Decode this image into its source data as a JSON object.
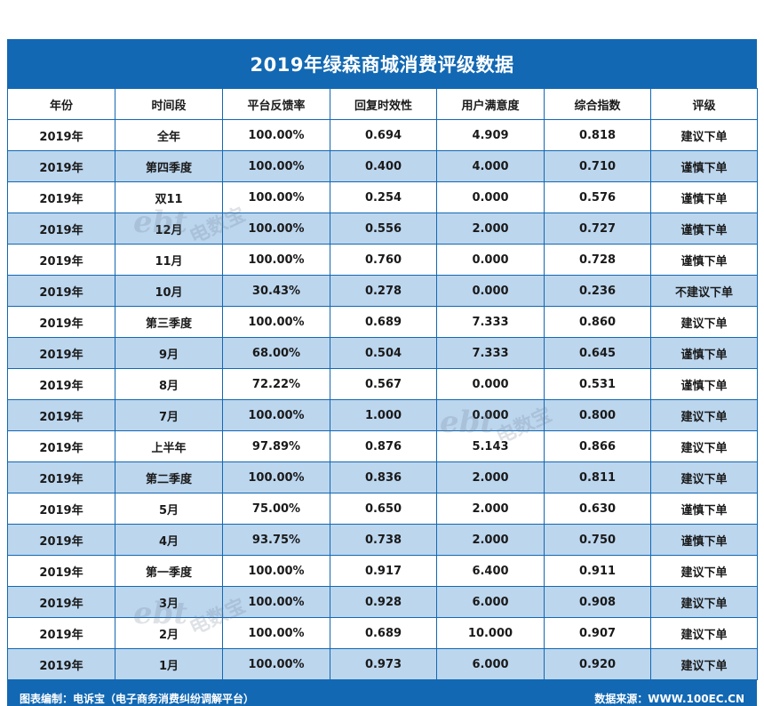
{
  "title": "2019年绿森商城消费评级数据",
  "columns": [
    "年份",
    "时间段",
    "平台反馈率",
    "回复时效性",
    "用户满意度",
    "综合指数",
    "评级"
  ],
  "rows": [
    [
      "2019年",
      "全年",
      "100.00%",
      "0.694",
      "4.909",
      "0.818",
      "建议下单"
    ],
    [
      "2019年",
      "第四季度",
      "100.00%",
      "0.400",
      "4.000",
      "0.710",
      "谨慎下单"
    ],
    [
      "2019年",
      "双11",
      "100.00%",
      "0.254",
      "0.000",
      "0.576",
      "谨慎下单"
    ],
    [
      "2019年",
      "12月",
      "100.00%",
      "0.556",
      "2.000",
      "0.727",
      "谨慎下单"
    ],
    [
      "2019年",
      "11月",
      "100.00%",
      "0.760",
      "0.000",
      "0.728",
      "谨慎下单"
    ],
    [
      "2019年",
      "10月",
      "30.43%",
      "0.278",
      "0.000",
      "0.236",
      "不建议下单"
    ],
    [
      "2019年",
      "第三季度",
      "100.00%",
      "0.689",
      "7.333",
      "0.860",
      "建议下单"
    ],
    [
      "2019年",
      "9月",
      "68.00%",
      "0.504",
      "7.333",
      "0.645",
      "谨慎下单"
    ],
    [
      "2019年",
      "8月",
      "72.22%",
      "0.567",
      "0.000",
      "0.531",
      "谨慎下单"
    ],
    [
      "2019年",
      "7月",
      "100.00%",
      "1.000",
      "0.000",
      "0.800",
      "建议下单"
    ],
    [
      "2019年",
      "上半年",
      "97.89%",
      "0.876",
      "5.143",
      "0.866",
      "建议下单"
    ],
    [
      "2019年",
      "第二季度",
      "100.00%",
      "0.836",
      "2.000",
      "0.811",
      "建议下单"
    ],
    [
      "2019年",
      "5月",
      "75.00%",
      "0.650",
      "2.000",
      "0.630",
      "谨慎下单"
    ],
    [
      "2019年",
      "4月",
      "93.75%",
      "0.738",
      "2.000",
      "0.750",
      "谨慎下单"
    ],
    [
      "2019年",
      "第一季度",
      "100.00%",
      "0.917",
      "6.400",
      "0.911",
      "建议下单"
    ],
    [
      "2019年",
      "3月",
      "100.00%",
      "0.928",
      "6.000",
      "0.908",
      "建议下单"
    ],
    [
      "2019年",
      "2月",
      "100.00%",
      "0.689",
      "10.000",
      "0.907",
      "建议下单"
    ],
    [
      "2019年",
      "1月",
      "100.00%",
      "0.973",
      "6.000",
      "0.920",
      "建议下单"
    ]
  ],
  "footer": {
    "left": "图表编制：电诉宝（电子商务消费纠纷调解平台）",
    "right": "数据来源：WWW.100EC.CN"
  },
  "watermark": {
    "logo": "ebt",
    "brand": "电数宝"
  },
  "colors": {
    "header_bg": "#1268b3",
    "row_alt": "#bcd6ee",
    "row": "#ffffff"
  }
}
